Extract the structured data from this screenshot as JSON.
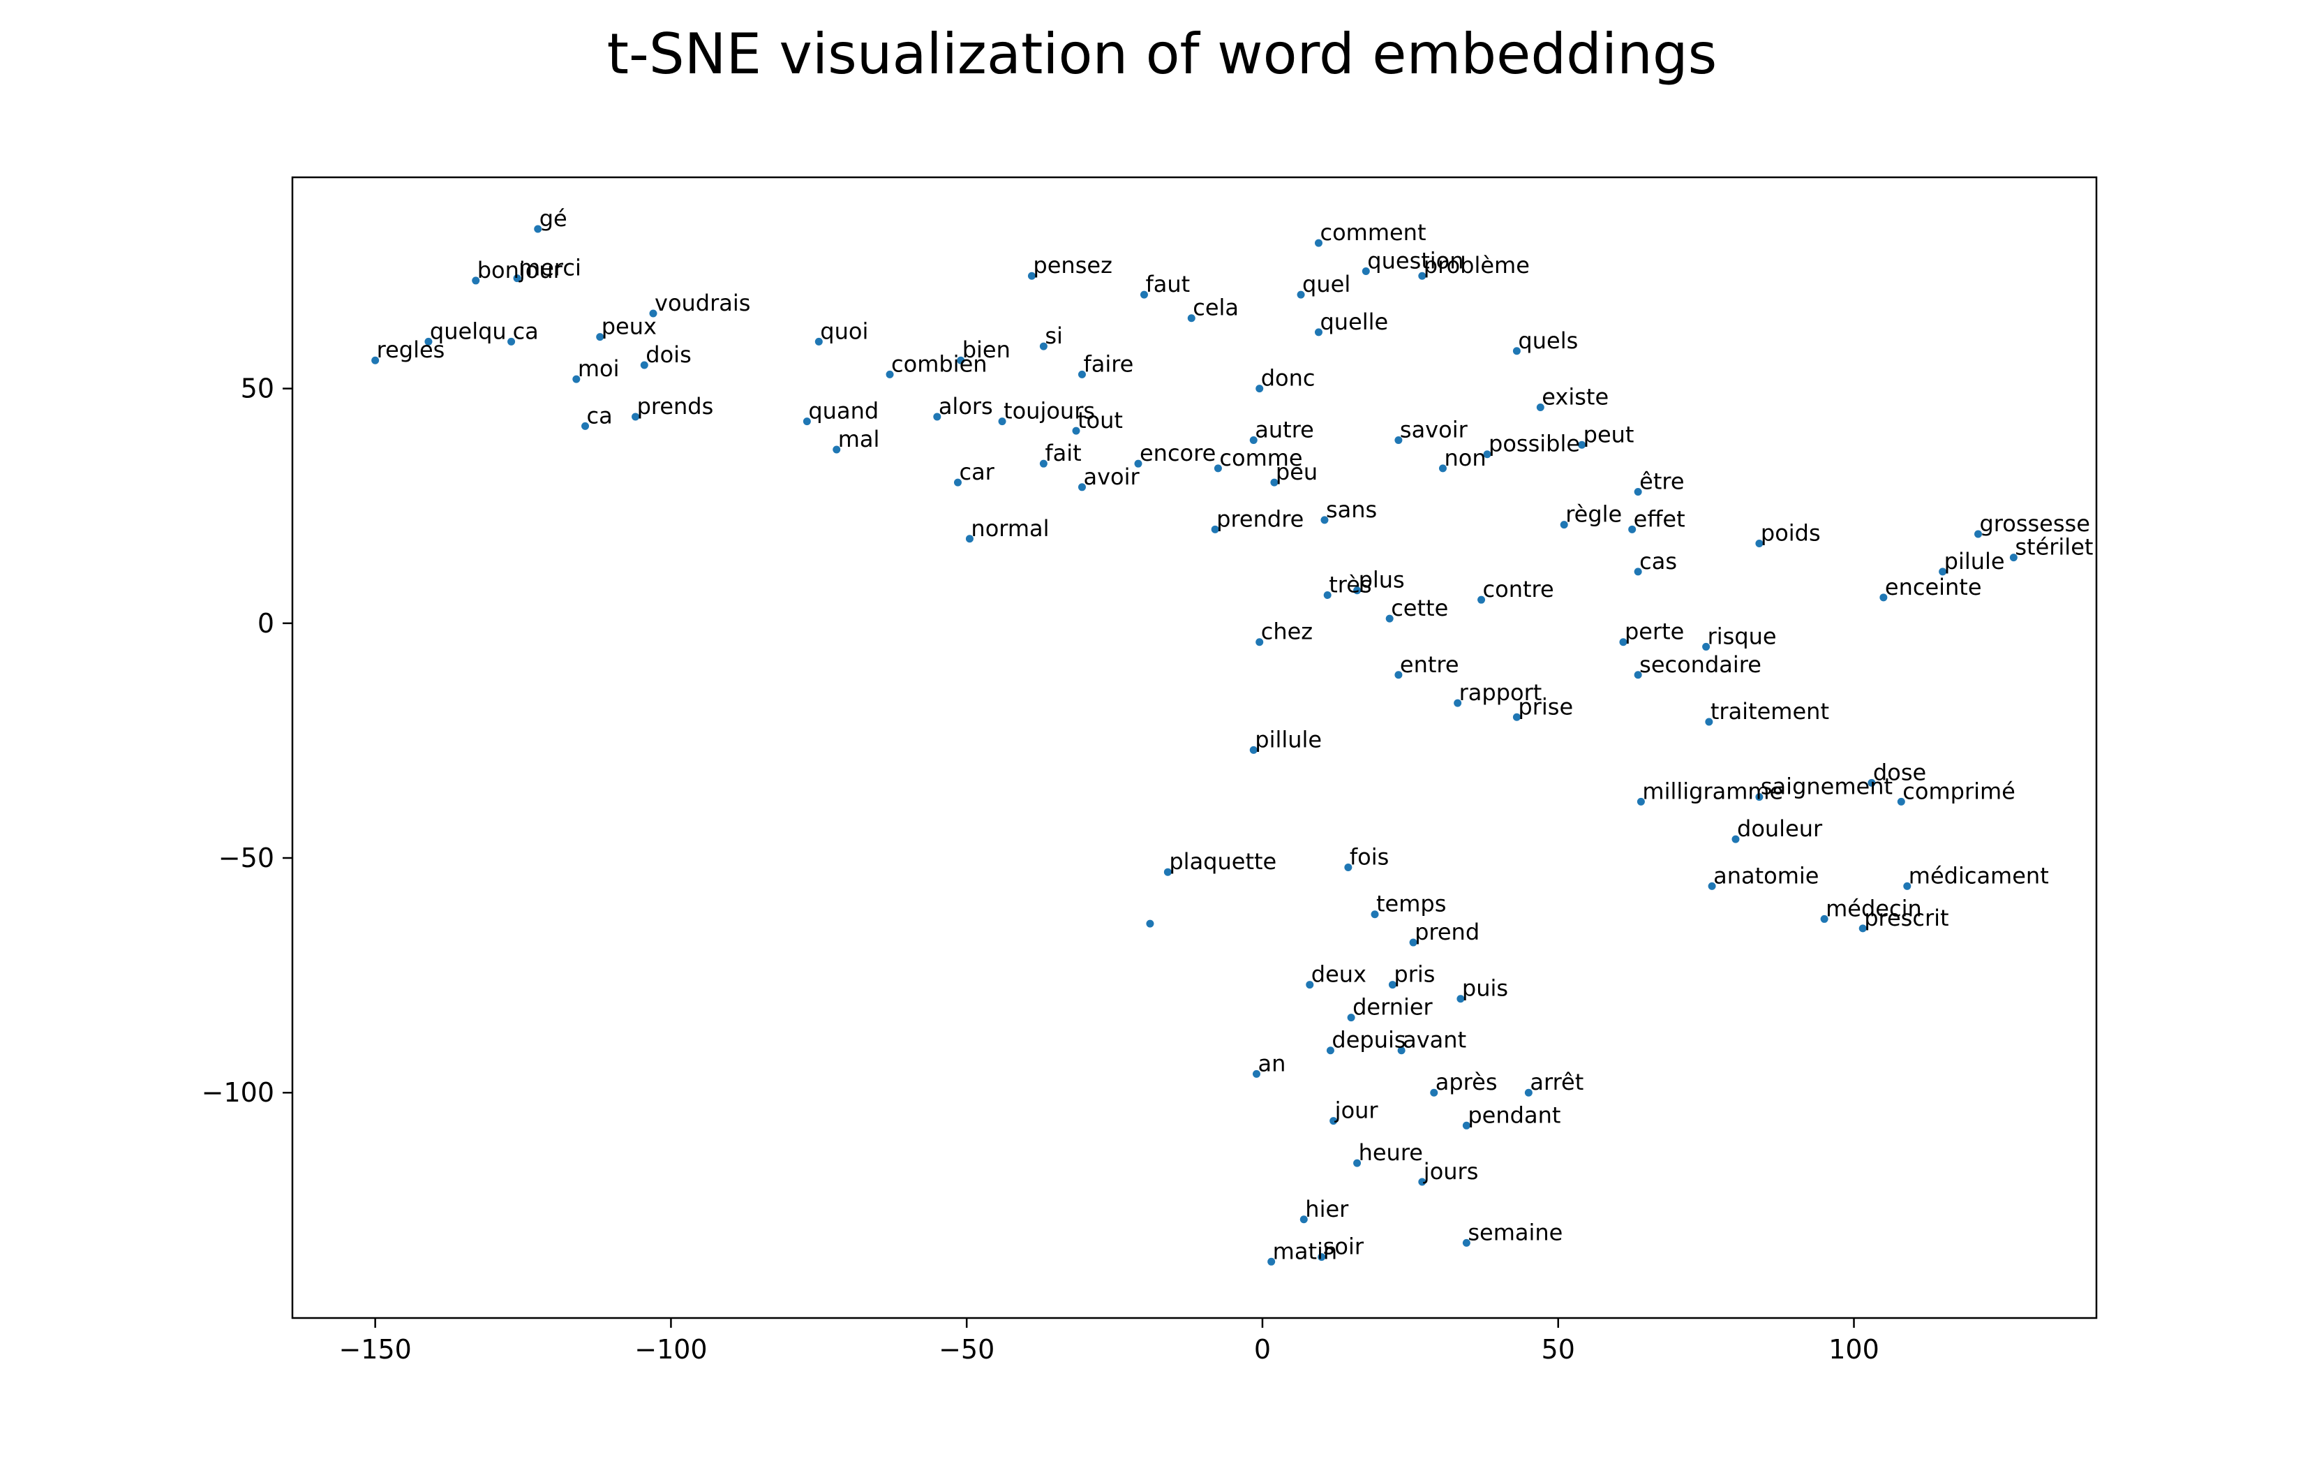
{
  "chart_data": {
    "type": "scatter",
    "title": "t-SNE visualization of word embeddings",
    "xlabel": "",
    "ylabel": "",
    "xlim": [
      -164,
      141
    ],
    "ylim": [
      -148,
      95
    ],
    "xticks": [
      -150,
      -100,
      -50,
      0,
      50,
      100
    ],
    "yticks": [
      -100,
      -50,
      0,
      50
    ],
    "xtick_labels": [
      "−150",
      "−100",
      "−50",
      "0",
      "50",
      "100"
    ],
    "ytick_labels": [
      "−100",
      "−50",
      "0",
      "50"
    ],
    "grid": false,
    "legend": false,
    "marker_color": "#1f77b4",
    "points": [
      {
        "x": -122.5,
        "y": 84,
        "label": "gé"
      },
      {
        "x": -133,
        "y": 73,
        "label": "bonjour"
      },
      {
        "x": -126,
        "y": 73.5,
        "label": "merci"
      },
      {
        "x": -103,
        "y": 66,
        "label": "voudrais"
      },
      {
        "x": -141,
        "y": 60,
        "label": "quelqu"
      },
      {
        "x": -127,
        "y": 60,
        "label": "ca"
      },
      {
        "x": -112,
        "y": 61,
        "label": "peux"
      },
      {
        "x": -150,
        "y": 56,
        "label": "regles"
      },
      {
        "x": -104.5,
        "y": 55,
        "label": "dois"
      },
      {
        "x": -116,
        "y": 52,
        "label": "moi"
      },
      {
        "x": -114.5,
        "y": 42,
        "label": "ca"
      },
      {
        "x": -106,
        "y": 44,
        "label": "prends"
      },
      {
        "x": -75,
        "y": 60,
        "label": "quoi"
      },
      {
        "x": -63,
        "y": 53,
        "label": "combien"
      },
      {
        "x": -51,
        "y": 56,
        "label": "bien"
      },
      {
        "x": -37,
        "y": 59,
        "label": "si"
      },
      {
        "x": -39,
        "y": 74,
        "label": "pensez"
      },
      {
        "x": -20,
        "y": 70,
        "label": "faut"
      },
      {
        "x": -12,
        "y": 65,
        "label": "cela"
      },
      {
        "x": -30.5,
        "y": 53,
        "label": "faire"
      },
      {
        "x": -77,
        "y": 43,
        "label": "quand"
      },
      {
        "x": -72,
        "y": 37,
        "label": "mal"
      },
      {
        "x": -55,
        "y": 44,
        "label": "alors"
      },
      {
        "x": -44,
        "y": 43,
        "label": "toujours"
      },
      {
        "x": -31.5,
        "y": 41,
        "label": "tout"
      },
      {
        "x": -37,
        "y": 34,
        "label": "fait"
      },
      {
        "x": -51.5,
        "y": 30,
        "label": "car"
      },
      {
        "x": -30.5,
        "y": 29,
        "label": "avoir"
      },
      {
        "x": -21,
        "y": 34,
        "label": "encore"
      },
      {
        "x": -7.5,
        "y": 33,
        "label": "comme"
      },
      {
        "x": -49.5,
        "y": 18,
        "label": "normal"
      },
      {
        "x": 9.5,
        "y": 81,
        "label": "comment"
      },
      {
        "x": 17.5,
        "y": 75,
        "label": "question"
      },
      {
        "x": 27,
        "y": 74,
        "label": "problème"
      },
      {
        "x": 6.5,
        "y": 70,
        "label": "quel"
      },
      {
        "x": 9.5,
        "y": 62,
        "label": "quelle"
      },
      {
        "x": 43,
        "y": 58,
        "label": "quels"
      },
      {
        "x": -0.5,
        "y": 50,
        "label": "donc"
      },
      {
        "x": 47,
        "y": 46,
        "label": "existe"
      },
      {
        "x": -1.5,
        "y": 39,
        "label": "autre"
      },
      {
        "x": 23,
        "y": 39,
        "label": "savoir"
      },
      {
        "x": 38,
        "y": 36,
        "label": "possible"
      },
      {
        "x": 54,
        "y": 38,
        "label": "peut"
      },
      {
        "x": 30.5,
        "y": 33,
        "label": "non"
      },
      {
        "x": 2,
        "y": 30,
        "label": "peu"
      },
      {
        "x": 63.5,
        "y": 28,
        "label": "être"
      },
      {
        "x": -8,
        "y": 20,
        "label": "prendre"
      },
      {
        "x": 10.5,
        "y": 22,
        "label": "sans"
      },
      {
        "x": 51,
        "y": 21,
        "label": "règle"
      },
      {
        "x": 62.5,
        "y": 20,
        "label": "effet"
      },
      {
        "x": 84,
        "y": 17,
        "label": "poids"
      },
      {
        "x": 121,
        "y": 19,
        "label": "grossesse"
      },
      {
        "x": 127,
        "y": 14,
        "label": "stérilet"
      },
      {
        "x": 115,
        "y": 11,
        "label": "pilule"
      },
      {
        "x": 63.5,
        "y": 11,
        "label": "cas"
      },
      {
        "x": 105,
        "y": 5.5,
        "label": "enceinte"
      },
      {
        "x": 11,
        "y": 6,
        "label": "très"
      },
      {
        "x": 16,
        "y": 7,
        "label": "plus"
      },
      {
        "x": 37,
        "y": 5,
        "label": "contre"
      },
      {
        "x": 21.5,
        "y": 1,
        "label": "cette"
      },
      {
        "x": -0.5,
        "y": -4,
        "label": "chez"
      },
      {
        "x": 61,
        "y": -4,
        "label": "perte"
      },
      {
        "x": 75,
        "y": -5,
        "label": "risque"
      },
      {
        "x": 63.5,
        "y": -11,
        "label": "secondaire"
      },
      {
        "x": 23,
        "y": -11,
        "label": "entre"
      },
      {
        "x": 33,
        "y": -17,
        "label": "rapport"
      },
      {
        "x": 43,
        "y": -20,
        "label": "prise"
      },
      {
        "x": 75.5,
        "y": -21,
        "label": "traitement"
      },
      {
        "x": -1.5,
        "y": -27,
        "label": "pillule"
      },
      {
        "x": 64,
        "y": -38,
        "label": "milligramme"
      },
      {
        "x": 84,
        "y": -37,
        "label": "saignement"
      },
      {
        "x": 103,
        "y": -34,
        "label": "dose"
      },
      {
        "x": 108,
        "y": -38,
        "label": "comprimé"
      },
      {
        "x": 80,
        "y": -46,
        "label": "douleur"
      },
      {
        "x": -16,
        "y": -53,
        "label": "plaquette"
      },
      {
        "x": 14.5,
        "y": -52,
        "label": "fois"
      },
      {
        "x": 76,
        "y": -56,
        "label": "anatomie"
      },
      {
        "x": 109,
        "y": -56,
        "label": "médicament"
      },
      {
        "x": -19,
        "y": -64,
        "label": ""
      },
      {
        "x": 19,
        "y": -62,
        "label": "temps"
      },
      {
        "x": 95,
        "y": -63,
        "label": "médecin"
      },
      {
        "x": 101.5,
        "y": -65,
        "label": "prescrit"
      },
      {
        "x": 25.5,
        "y": -68,
        "label": "prend"
      },
      {
        "x": 8,
        "y": -77,
        "label": "deux"
      },
      {
        "x": 22,
        "y": -77,
        "label": "pris"
      },
      {
        "x": 33.5,
        "y": -80,
        "label": "puis"
      },
      {
        "x": 15,
        "y": -84,
        "label": "dernier"
      },
      {
        "x": 11.5,
        "y": -91,
        "label": "depuis"
      },
      {
        "x": 23.5,
        "y": -91,
        "label": "avant"
      },
      {
        "x": -1,
        "y": -96,
        "label": "an"
      },
      {
        "x": 29,
        "y": -100,
        "label": "après"
      },
      {
        "x": 45,
        "y": -100,
        "label": "arrêt"
      },
      {
        "x": 12,
        "y": -106,
        "label": "jour"
      },
      {
        "x": 34.5,
        "y": -107,
        "label": "pendant"
      },
      {
        "x": 16,
        "y": -115,
        "label": "heure"
      },
      {
        "x": 27,
        "y": -119,
        "label": "jours"
      },
      {
        "x": 7,
        "y": -127,
        "label": "hier"
      },
      {
        "x": 34.5,
        "y": -132,
        "label": "semaine"
      },
      {
        "x": 1.5,
        "y": -136,
        "label": "matin"
      },
      {
        "x": 10,
        "y": -135,
        "label": "soir"
      }
    ]
  }
}
